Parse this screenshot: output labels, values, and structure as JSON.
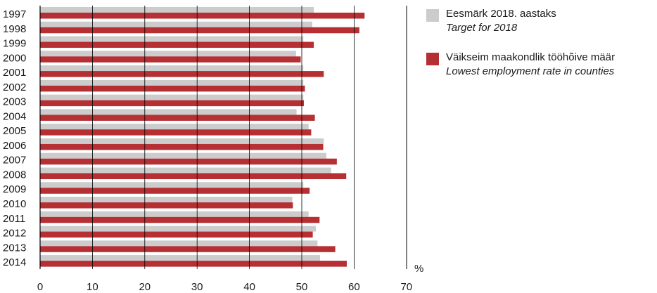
{
  "chart_data": {
    "type": "bar",
    "orientation": "horizontal",
    "title": "",
    "xlabel": "",
    "ylabel": "",
    "x_unit_label": "%",
    "xlim": [
      0,
      70
    ],
    "xticks": [
      0,
      10,
      20,
      30,
      40,
      50,
      60,
      70
    ],
    "grid": true,
    "legend_position": "right",
    "categories": [
      "1997",
      "1998",
      "1999",
      "2000",
      "2001",
      "2002",
      "2003",
      "2004",
      "2005",
      "2006",
      "2007",
      "2008",
      "2009",
      "2010",
      "2011",
      "2012",
      "2013",
      "2014"
    ],
    "series": [
      {
        "name": "Eesmärk 2018. aastaks",
        "name_en": "Target for 2018",
        "color": "#cccccc",
        "values": [
          52.3,
          52.0,
          50.3,
          48.9,
          50.3,
          50.3,
          50.3,
          49.0,
          51.3,
          54.2,
          54.7,
          55.6,
          50.3,
          48.2,
          51.3,
          52.7,
          53.0,
          53.5
        ]
      },
      {
        "name": "Väikseim maakondlik tööhõive määr",
        "name_en": "Lowest employment rate in counties",
        "color": "#b52f33",
        "values": [
          62.0,
          61.0,
          52.3,
          49.8,
          54.2,
          50.6,
          50.4,
          52.5,
          51.8,
          54.1,
          56.7,
          58.5,
          51.5,
          48.3,
          53.4,
          52.1,
          56.4,
          58.6
        ]
      }
    ]
  }
}
